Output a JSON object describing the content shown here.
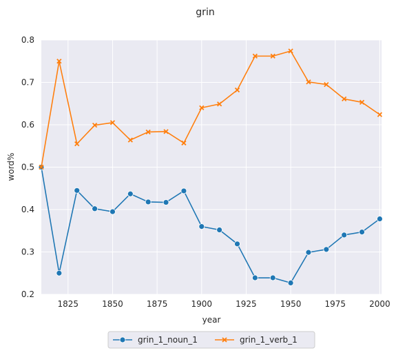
{
  "chart_data": {
    "type": "line",
    "title": "grin",
    "xlabel": "year",
    "ylabel": "word%",
    "xlim": [
      1810,
      2001
    ],
    "ylim": [
      0.2,
      0.8
    ],
    "xticks": [
      1825,
      1850,
      1875,
      1900,
      1925,
      1950,
      1975,
      2000
    ],
    "yticks": [
      0.2,
      0.3,
      0.4,
      0.5,
      0.6,
      0.7,
      0.8
    ],
    "ytick_labels": [
      "0.2",
      "0.3",
      "0.4",
      "0.5",
      "0.6",
      "0.7",
      "0.8"
    ],
    "grid": true,
    "legend_position": "bottom-center",
    "x": [
      1810,
      1820,
      1830,
      1840,
      1850,
      1860,
      1870,
      1880,
      1890,
      1900,
      1910,
      1920,
      1930,
      1940,
      1950,
      1960,
      1970,
      1980,
      1990,
      2000
    ],
    "series": [
      {
        "name": "grin_1_noun_1",
        "color": "#1f77b4",
        "marker": "circle",
        "values": [
          0.5,
          0.25,
          0.445,
          0.402,
          0.395,
          0.437,
          0.418,
          0.417,
          0.444,
          0.36,
          0.352,
          0.319,
          0.239,
          0.239,
          0.227,
          0.299,
          0.306,
          0.34,
          0.347,
          0.378
        ]
      },
      {
        "name": "grin_1_verb_1",
        "color": "#ff7f0e",
        "marker": "x",
        "values": [
          0.5,
          0.75,
          0.555,
          0.599,
          0.605,
          0.564,
          0.583,
          0.584,
          0.557,
          0.64,
          0.649,
          0.682,
          0.762,
          0.762,
          0.774,
          0.701,
          0.695,
          0.661,
          0.653,
          0.624
        ]
      }
    ]
  }
}
